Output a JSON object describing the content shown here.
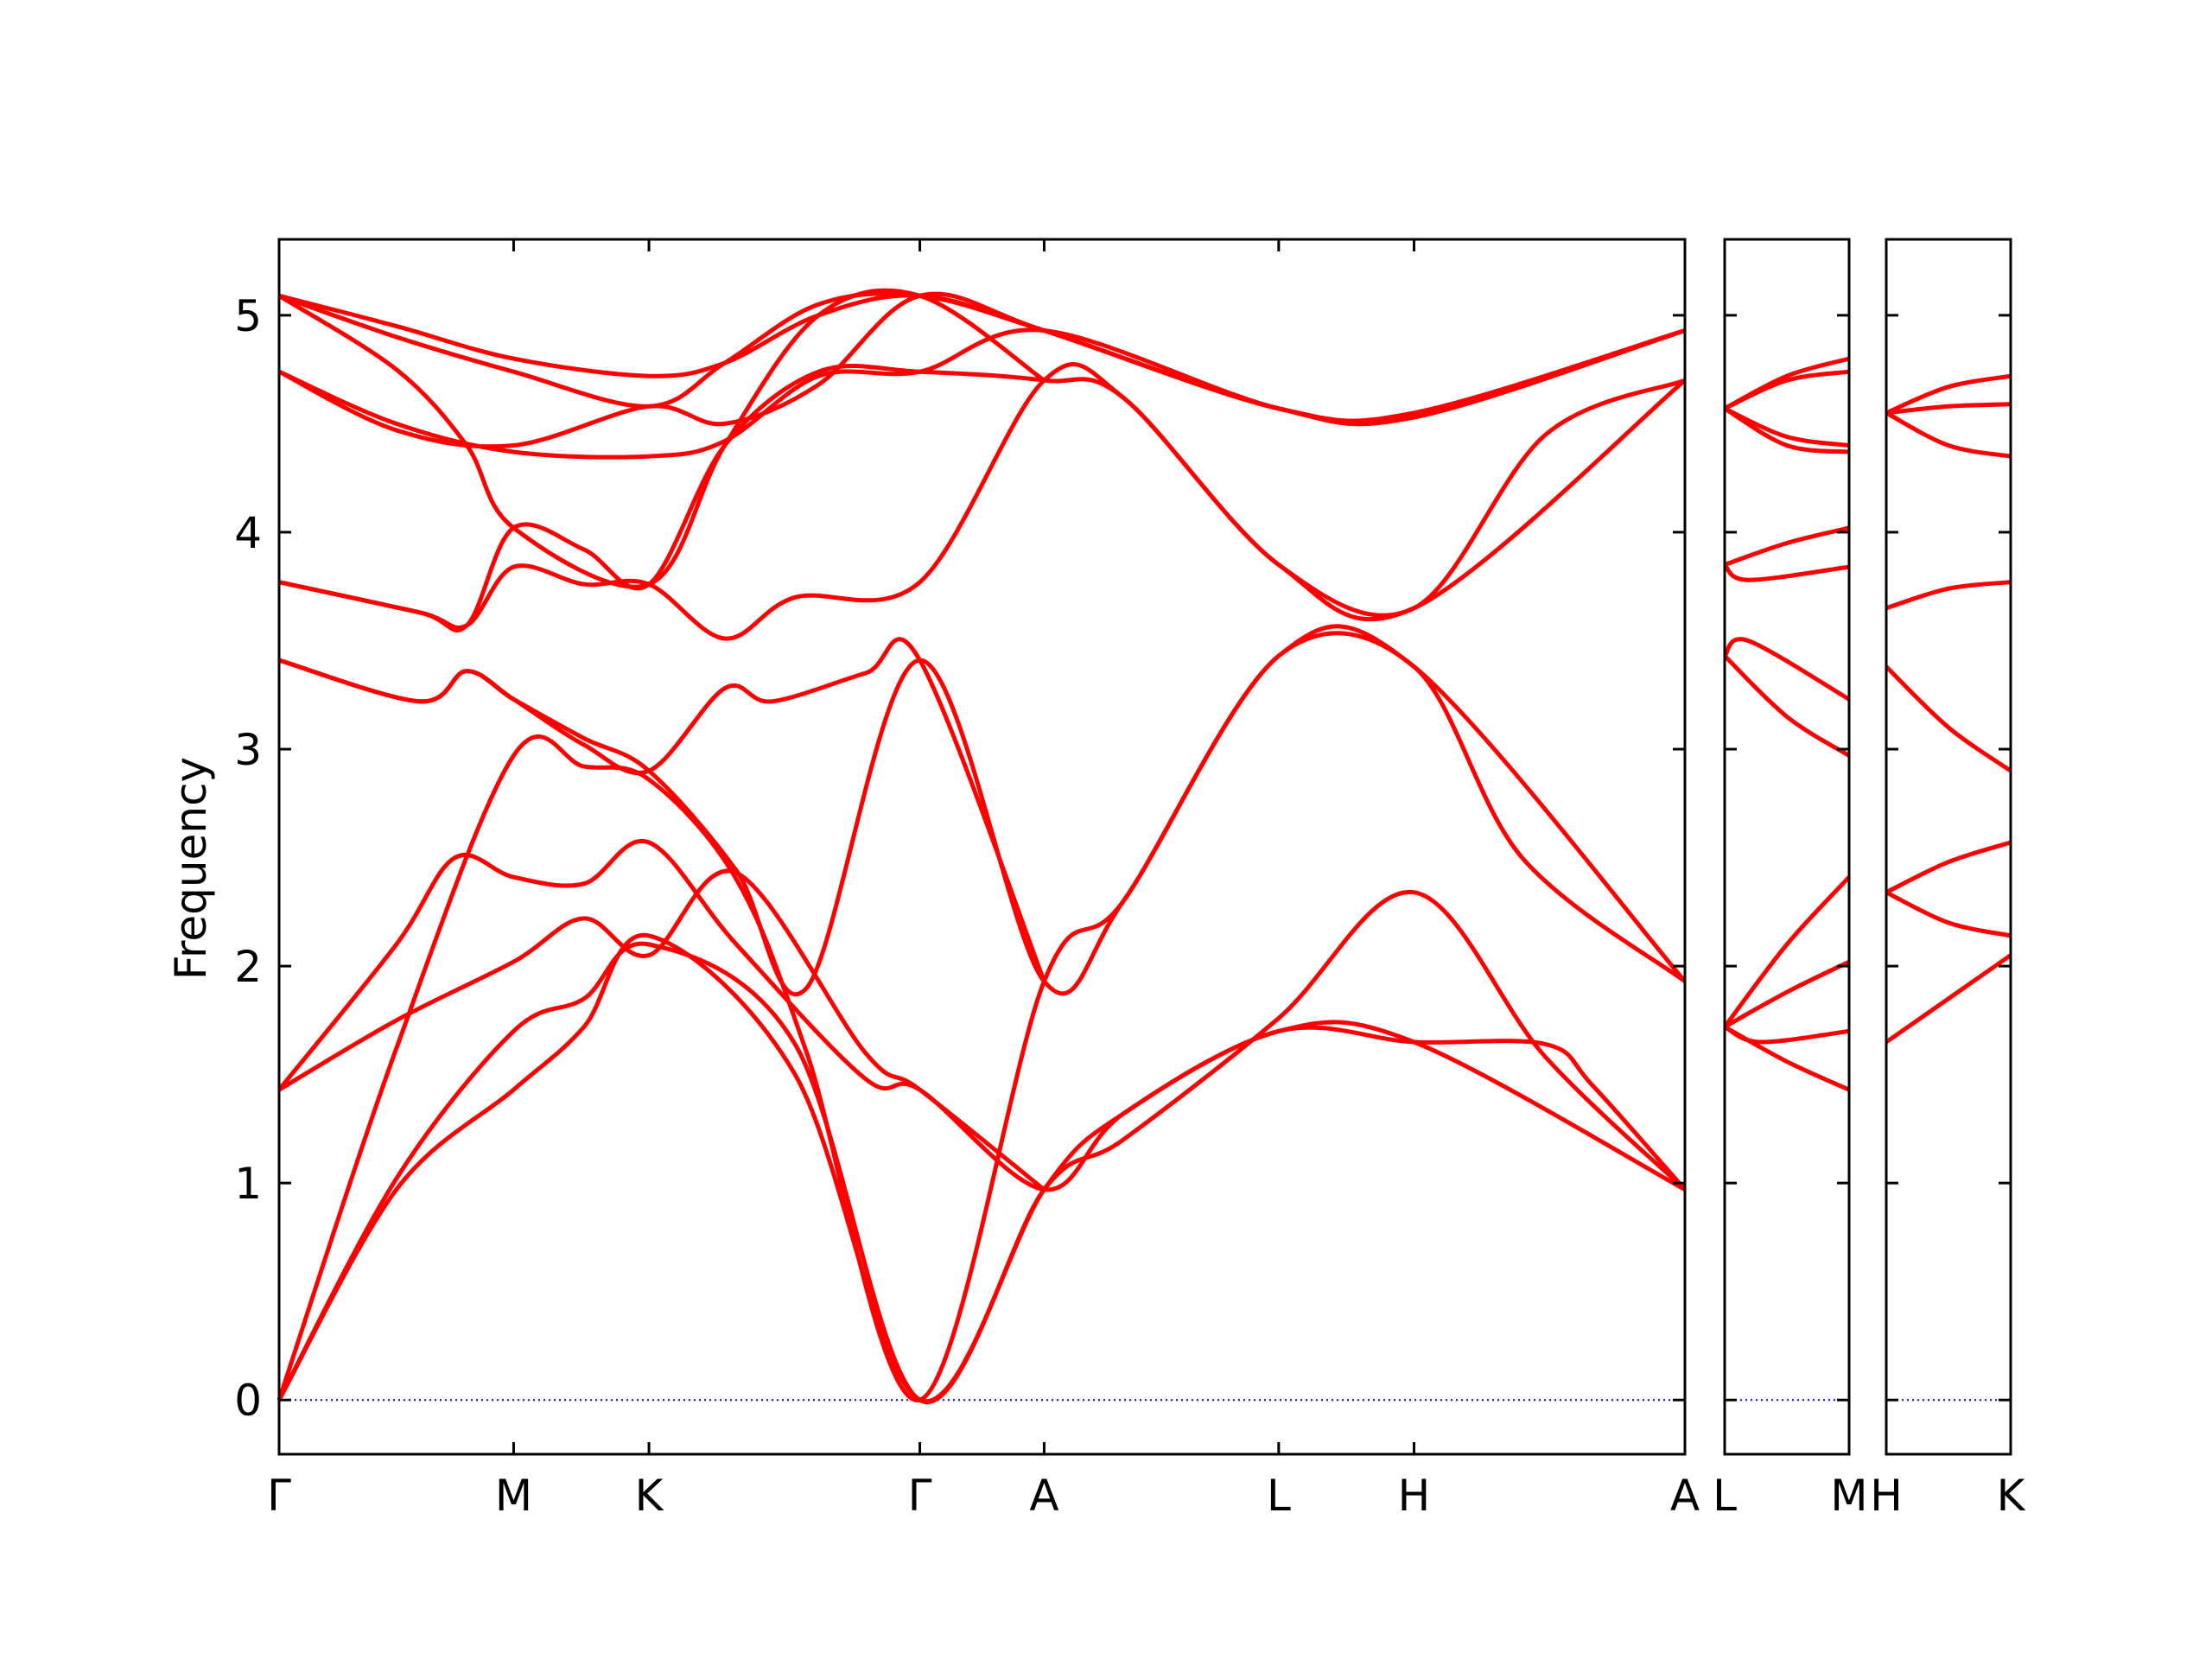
{
  "chart_data": {
    "type": "line",
    "ylabel": "Frequency",
    "ylim": [
      -0.25,
      5.35
    ],
    "yticks": [
      0,
      1,
      2,
      3,
      4,
      5
    ],
    "grid": false,
    "legend": "none",
    "colors": {
      "bands": "#ff0000",
      "zero_line": "#0000ff",
      "frame": "#000000"
    },
    "x_tick_labels": [
      "Γ",
      "M",
      "K",
      "Γ",
      "A",
      "L",
      "H",
      "A",
      "L",
      "M",
      "H",
      "K"
    ],
    "panels": [
      {
        "segments": [
          {
            "from": "Γ",
            "to": "M",
            "length": 1.0
          },
          {
            "from": "M",
            "to": "K",
            "length": 0.577
          },
          {
            "from": "K",
            "to": "Γ",
            "length": 1.155
          },
          {
            "from": "Γ",
            "to": "A",
            "length": 0.53
          },
          {
            "from": "A",
            "to": "L",
            "length": 1.0
          },
          {
            "from": "L",
            "to": "H",
            "length": 0.577
          },
          {
            "from": "H",
            "to": "A",
            "length": 1.155
          }
        ],
        "bands": [
          [
            [
              0,
              0
            ],
            [
              0.5,
              0.97
            ],
            [
              1.0,
              1.43
            ],
            [
              1.3,
              1.72
            ],
            [
              1.577,
              2.14
            ],
            [
              2.2,
              1.5
            ],
            [
              2.732,
              0
            ],
            [
              3.262,
              0.97
            ],
            [
              3.6,
              1.32
            ],
            [
              4.262,
              1.7
            ],
            [
              4.839,
              1.65
            ],
            [
              5.4,
              1.64
            ],
            [
              5.6,
              1.45
            ],
            [
              5.994,
              0.97
            ]
          ],
          [
            [
              0,
              0
            ],
            [
              0.5,
              1.02
            ],
            [
              1.0,
              1.7
            ],
            [
              1.3,
              1.85
            ],
            [
              1.577,
              2.1
            ],
            [
              2.2,
              1.64
            ],
            [
              2.732,
              0
            ],
            [
              3.262,
              0.97
            ],
            [
              3.6,
              1.2
            ],
            [
              4.262,
              1.76
            ],
            [
              4.839,
              2.34
            ],
            [
              5.4,
              1.58
            ],
            [
              5.994,
              0.97
            ]
          ],
          [
            [
              0,
              0
            ],
            [
              0.5,
              1.62
            ],
            [
              1.0,
              2.97
            ],
            [
              1.3,
              2.92
            ],
            [
              1.577,
              2.86
            ],
            [
              1.95,
              2.4
            ],
            [
              2.25,
              1.6
            ],
            [
              2.732,
              0
            ],
            [
              3.262,
              1.93
            ],
            [
              3.6,
              2.3
            ],
            [
              4.262,
              3.43
            ],
            [
              4.839,
              3.38
            ],
            [
              5.3,
              2.5
            ],
            [
              5.994,
              1.93
            ]
          ],
          [
            [
              0,
              1.43
            ],
            [
              0.5,
              2.1
            ],
            [
              0.75,
              2.5
            ],
            [
              1.0,
              2.41
            ],
            [
              1.3,
              2.38
            ],
            [
              1.577,
              2.57
            ],
            [
              1.95,
              2.1
            ],
            [
              2.5,
              1.48
            ],
            [
              2.732,
              1.43
            ],
            [
              3.262,
              0.97
            ],
            [
              3.6,
              1.32
            ],
            [
              4.262,
              1.7
            ],
            [
              4.839,
              1.65
            ],
            [
              5.994,
              0.97
            ]
          ],
          [
            [
              0,
              1.43
            ],
            [
              0.5,
              1.75
            ],
            [
              1.0,
              2.02
            ],
            [
              1.3,
              2.22
            ],
            [
              1.577,
              2.05
            ],
            [
              1.95,
              2.43
            ],
            [
              2.5,
              1.6
            ],
            [
              2.732,
              1.43
            ],
            [
              3.262,
              0.97
            ]
          ],
          [
            [
              0,
              3.41
            ],
            [
              0.6,
              3.22
            ],
            [
              0.8,
              3.36
            ],
            [
              1.0,
              3.23
            ],
            [
              1.3,
              3.05
            ],
            [
              1.577,
              2.9
            ],
            [
              1.95,
              2.44
            ],
            [
              2.25,
              1.9
            ],
            [
              2.732,
              3.41
            ],
            [
              3.262,
              1.93
            ],
            [
              3.6,
              2.3
            ],
            [
              4.262,
              3.43
            ],
            [
              4.839,
              3.38
            ],
            [
              5.994,
              1.93
            ]
          ],
          [
            [
              0,
              3.41
            ],
            [
              0.6,
              3.22
            ],
            [
              0.8,
              3.36
            ],
            [
              1.0,
              3.23
            ],
            [
              1.3,
              3.02
            ],
            [
              1.577,
              2.9
            ],
            [
              1.9,
              3.28
            ],
            [
              2.1,
              3.22
            ],
            [
              2.5,
              3.35
            ],
            [
              2.732,
              3.41
            ],
            [
              3.262,
              1.93
            ]
          ],
          [
            [
              0,
              3.77
            ],
            [
              0.6,
              3.63
            ],
            [
              0.8,
              3.57
            ],
            [
              1.0,
              3.84
            ],
            [
              1.3,
              3.76
            ],
            [
              1.577,
              3.76
            ],
            [
              1.9,
              3.51
            ],
            [
              2.2,
              3.7
            ],
            [
              2.732,
              3.77
            ],
            [
              3.262,
              4.7
            ],
            [
              3.6,
              4.62
            ],
            [
              4.262,
              3.85
            ],
            [
              4.839,
              3.65
            ],
            [
              5.4,
              4.45
            ],
            [
              5.994,
              4.7
            ]
          ],
          [
            [
              0,
              3.77
            ],
            [
              0.6,
              3.63
            ],
            [
              0.8,
              3.57
            ],
            [
              1.0,
              4.02
            ],
            [
              1.3,
              3.92
            ],
            [
              1.577,
              3.76
            ],
            [
              1.9,
              4.4
            ],
            [
              2.3,
              4.74
            ],
            [
              2.732,
              4.74
            ],
            [
              3.262,
              4.7
            ],
            [
              3.6,
              4.62
            ],
            [
              4.262,
              3.85
            ],
            [
              4.839,
              3.65
            ],
            [
              5.994,
              4.7
            ]
          ],
          [
            [
              0,
              4.74
            ],
            [
              0.5,
              4.5
            ],
            [
              1.0,
              4.37
            ],
            [
              1.577,
              4.35
            ],
            [
              1.9,
              4.42
            ],
            [
              2.3,
              4.72
            ],
            [
              2.732,
              4.74
            ],
            [
              3.262,
              4.93
            ],
            [
              4.262,
              4.57
            ],
            [
              4.839,
              4.53
            ],
            [
              5.994,
              4.93
            ]
          ],
          [
            [
              0,
              4.74
            ],
            [
              0.5,
              4.47
            ],
            [
              1.0,
              4.4
            ],
            [
              1.577,
              4.58
            ],
            [
              1.9,
              4.5
            ],
            [
              2.3,
              4.68
            ],
            [
              2.732,
              5.09
            ],
            [
              3.262,
              4.93
            ],
            [
              4.262,
              4.57
            ],
            [
              4.839,
              4.55
            ],
            [
              5.994,
              4.93
            ]
          ],
          [
            [
              0,
              5.09
            ],
            [
              0.5,
              4.95
            ],
            [
              1.0,
              4.8
            ],
            [
              1.577,
              4.72
            ],
            [
              1.9,
              4.78
            ],
            [
              2.3,
              5.0
            ],
            [
              2.732,
              5.09
            ],
            [
              3.262,
              4.93
            ],
            [
              4.262,
              4.57
            ],
            [
              4.839,
              4.55
            ],
            [
              5.994,
              4.93
            ]
          ],
          [
            [
              0,
              5.09
            ],
            [
              0.5,
              4.9
            ],
            [
              1.0,
              4.74
            ],
            [
              1.577,
              4.58
            ],
            [
              1.9,
              4.78
            ],
            [
              2.3,
              5.05
            ],
            [
              2.732,
              5.09
            ],
            [
              3.262,
              4.93
            ],
            [
              4.262,
              4.57
            ],
            [
              4.839,
              4.53
            ],
            [
              5.994,
              4.93
            ]
          ],
          [
            [
              0,
              5.09
            ],
            [
              0.5,
              4.75
            ],
            [
              0.8,
              4.4
            ],
            [
              1.0,
              4.02
            ],
            [
              1.577,
              3.76
            ],
            [
              1.9,
              4.4
            ],
            [
              2.3,
              5.0
            ],
            [
              2.732,
              5.09
            ],
            [
              3.262,
              4.7
            ]
          ]
        ]
      },
      {
        "segments": [
          {
            "from": "L",
            "to": "M",
            "length": 0.53
          }
        ],
        "bands": [
          [
            [
              0,
              1.72
            ],
            [
              0.265,
              1.56
            ],
            [
              0.53,
              1.43
            ]
          ],
          [
            [
              0,
              1.72
            ],
            [
              0.15,
              1.65
            ],
            [
              0.53,
              1.7
            ]
          ],
          [
            [
              0,
              1.72
            ],
            [
              0.265,
              1.88
            ],
            [
              0.53,
              2.02
            ]
          ],
          [
            [
              0,
              1.72
            ],
            [
              0.265,
              2.1
            ],
            [
              0.53,
              2.41
            ]
          ],
          [
            [
              0,
              3.43
            ],
            [
              0.265,
              3.15
            ],
            [
              0.53,
              2.97
            ]
          ],
          [
            [
              0,
              3.43
            ],
            [
              0.1,
              3.5
            ],
            [
              0.53,
              3.23
            ]
          ],
          [
            [
              0,
              3.85
            ],
            [
              0.265,
              3.95
            ],
            [
              0.53,
              4.02
            ]
          ],
          [
            [
              0,
              3.85
            ],
            [
              0.1,
              3.78
            ],
            [
              0.53,
              3.84
            ]
          ],
          [
            [
              0,
              4.57
            ],
            [
              0.265,
              4.4
            ],
            [
              0.53,
              4.37
            ]
          ],
          [
            [
              0,
              4.57
            ],
            [
              0.265,
              4.44
            ],
            [
              0.53,
              4.4
            ]
          ],
          [
            [
              0,
              4.57
            ],
            [
              0.265,
              4.7
            ],
            [
              0.53,
              4.74
            ]
          ],
          [
            [
              0,
              4.57
            ],
            [
              0.265,
              4.72
            ],
            [
              0.53,
              4.8
            ]
          ]
        ]
      },
      {
        "segments": [
          {
            "from": "H",
            "to": "K",
            "length": 0.53
          }
        ],
        "bands": [
          [
            [
              0,
              1.65
            ],
            [
              0.265,
              1.85
            ],
            [
              0.53,
              2.05
            ]
          ],
          [
            [
              0,
              2.34
            ],
            [
              0.265,
              2.2
            ],
            [
              0.53,
              2.14
            ]
          ],
          [
            [
              0,
              2.34
            ],
            [
              0.265,
              2.48
            ],
            [
              0.53,
              2.57
            ]
          ],
          [
            [
              0,
              3.38
            ],
            [
              0.265,
              3.1
            ],
            [
              0.53,
              2.9
            ]
          ],
          [
            [
              0,
              3.65
            ],
            [
              0.265,
              3.74
            ],
            [
              0.53,
              3.77
            ]
          ],
          [
            [
              0,
              4.55
            ],
            [
              0.265,
              4.4
            ],
            [
              0.53,
              4.35
            ]
          ],
          [
            [
              0,
              4.55
            ],
            [
              0.265,
              4.58
            ],
            [
              0.53,
              4.59
            ]
          ],
          [
            [
              0,
              4.55
            ],
            [
              0.265,
              4.67
            ],
            [
              0.53,
              4.72
            ]
          ]
        ]
      }
    ]
  }
}
